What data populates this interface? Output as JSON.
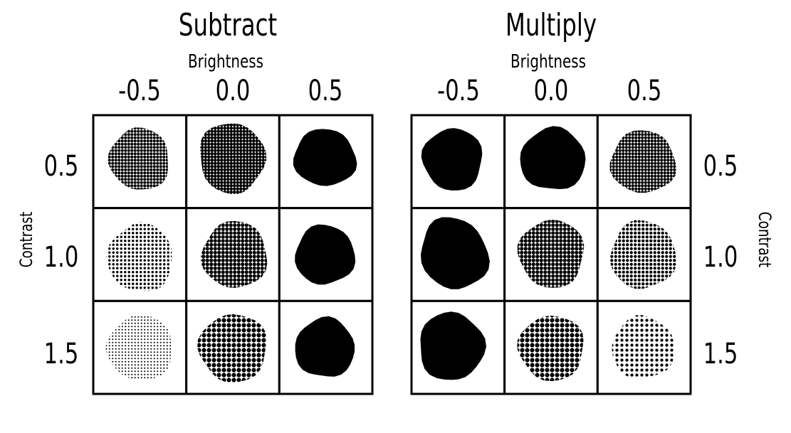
{
  "panels": [
    {
      "title": "Subtract",
      "brightness_label": "Brightness",
      "brightness_ticks": [
        "-0.5",
        "0.0",
        "0.5"
      ],
      "contrast_ticks": [
        "0.5",
        "1.0",
        "1.5"
      ],
      "cells": [
        [
          {
            "dot_density": 0.75,
            "grain": "fine"
          },
          {
            "dot_density": 0.9,
            "grain": "fine"
          },
          {
            "dot_density": 1.0,
            "grain": "solid"
          }
        ],
        [
          {
            "dot_density": 0.35,
            "grain": "medium"
          },
          {
            "dot_density": 0.8,
            "grain": "medium"
          },
          {
            "dot_density": 1.0,
            "grain": "solid"
          }
        ],
        [
          {
            "dot_density": 0.2,
            "grain": "fine"
          },
          {
            "dot_density": 0.7,
            "grain": "coarse"
          },
          {
            "dot_density": 1.0,
            "grain": "solid"
          }
        ]
      ]
    },
    {
      "title": "Multiply",
      "brightness_label": "Brightness",
      "brightness_ticks": [
        "-0.5",
        "0.0",
        "0.5"
      ],
      "contrast_ticks": [
        "0.5",
        "1.0",
        "1.5"
      ],
      "cells": [
        [
          {
            "dot_density": 1.0,
            "grain": "solid"
          },
          {
            "dot_density": 0.95,
            "grain": "solid"
          },
          {
            "dot_density": 0.8,
            "grain": "fine"
          }
        ],
        [
          {
            "dot_density": 1.0,
            "grain": "solid"
          },
          {
            "dot_density": 0.8,
            "grain": "medium"
          },
          {
            "dot_density": 0.55,
            "grain": "medium"
          }
        ],
        [
          {
            "dot_density": 1.0,
            "grain": "solid"
          },
          {
            "dot_density": 0.7,
            "grain": "coarse"
          },
          {
            "dot_density": 0.35,
            "grain": "coarse"
          }
        ]
      ]
    }
  ],
  "contrast_label": "Contrast"
}
